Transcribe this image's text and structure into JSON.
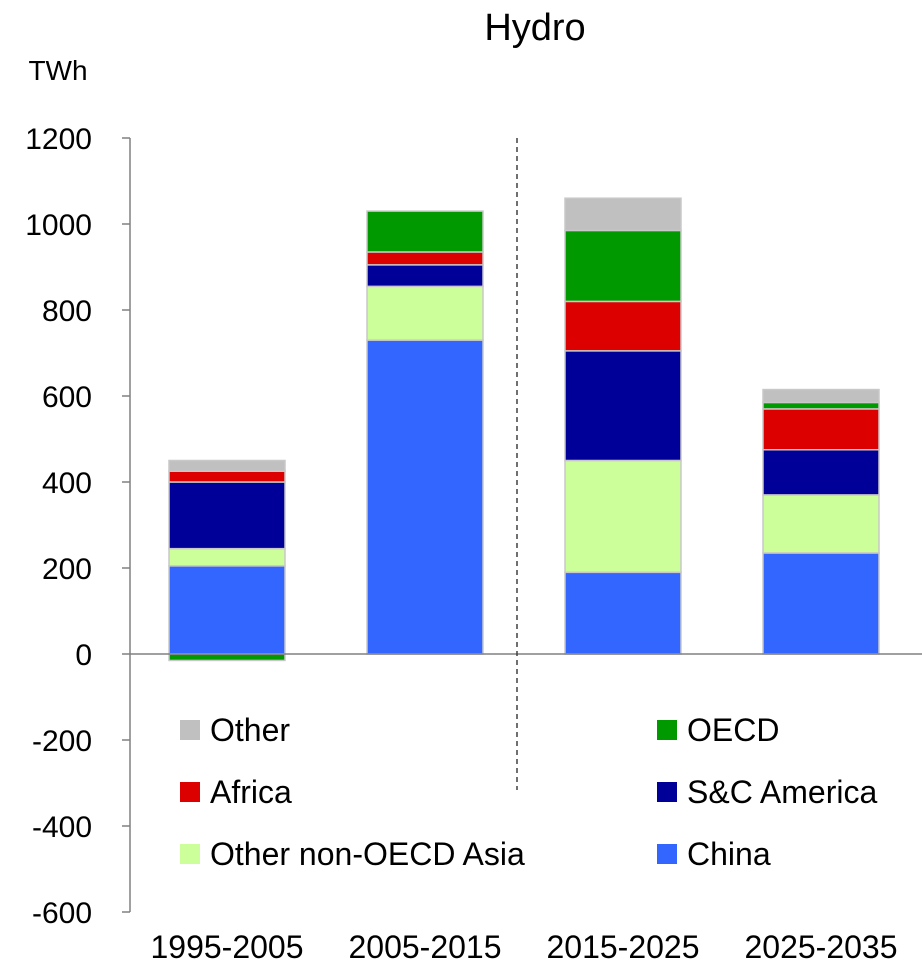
{
  "chart_data": {
    "type": "bar",
    "stacked": true,
    "title": "Hydro",
    "ylabel": "TWh",
    "xlabel": "",
    "ylim": [
      -600,
      1200
    ],
    "yticks": [
      1200,
      1000,
      800,
      600,
      400,
      200,
      0,
      -200,
      -400,
      -600
    ],
    "categories": [
      "1995-2005",
      "2005-2015",
      "2015-2025",
      "2025-2035"
    ],
    "divider_after_category": 1,
    "divider_style": "dashed",
    "grid": false,
    "legend_position": "lower-inside",
    "series": [
      {
        "name": "China",
        "color": "#3366ff",
        "values": [
          205,
          730,
          190,
          235
        ]
      },
      {
        "name": "Other non-OECD Asia",
        "color": "#ccff99",
        "values": [
          40,
          125,
          260,
          135
        ]
      },
      {
        "name": "S&C America",
        "color": "#000099",
        "values": [
          155,
          50,
          255,
          105
        ]
      },
      {
        "name": "Africa",
        "color": "#dd0000",
        "values": [
          25,
          30,
          115,
          95
        ]
      },
      {
        "name": "OECD",
        "color": "#009900",
        "values": [
          -15,
          95,
          165,
          15
        ]
      },
      {
        "name": "Other",
        "color": "#c0c0c0",
        "values": [
          25,
          0,
          75,
          30
        ]
      }
    ]
  },
  "legend": [
    {
      "label": "Other",
      "color": "#c0c0c0"
    },
    {
      "label": "OECD",
      "color": "#009900"
    },
    {
      "label": "Africa",
      "color": "#dd0000"
    },
    {
      "label": "S&C America",
      "color": "#000099"
    },
    {
      "label": "Other non-OECD Asia",
      "color": "#ccff99"
    },
    {
      "label": "China",
      "color": "#3366ff"
    }
  ]
}
